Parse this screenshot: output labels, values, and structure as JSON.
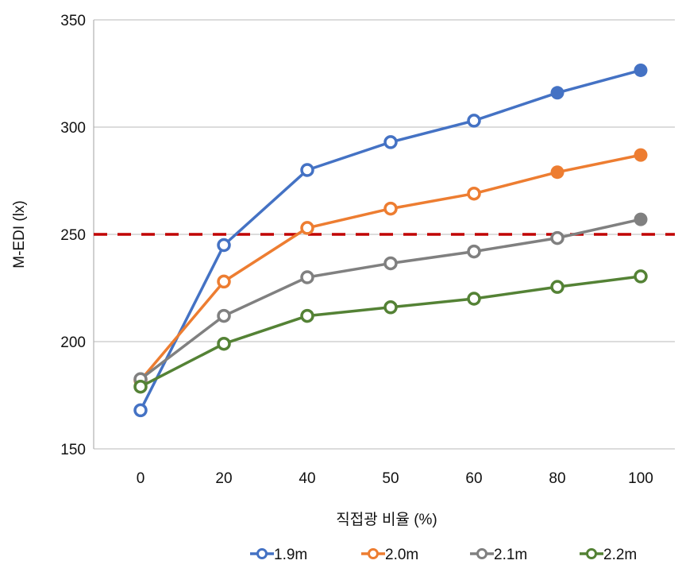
{
  "chart_data": {
    "type": "line",
    "title": "",
    "xlabel": "직접광 비율 (%)",
    "ylabel": "M-EDI (lx)",
    "categories": [
      "0",
      "20",
      "40",
      "50",
      "60",
      "80",
      "100"
    ],
    "ylim": [
      150,
      350
    ],
    "yticks": [
      "150",
      "200",
      "250",
      "300",
      "350"
    ],
    "grid": true,
    "legend_position": "bottom",
    "reference_line": {
      "value": 250,
      "color": "#C00000",
      "style": "dashed"
    },
    "series": [
      {
        "name": "1.9m",
        "color": "#4472C4",
        "values": [
          168,
          245,
          280,
          293,
          303,
          316,
          326.5
        ],
        "filled": [
          false,
          false,
          false,
          false,
          false,
          true,
          true
        ]
      },
      {
        "name": "2.0m",
        "color": "#ED7D31",
        "values": [
          182,
          228,
          253,
          262,
          269,
          279,
          287
        ],
        "filled": [
          false,
          false,
          false,
          false,
          false,
          true,
          true
        ]
      },
      {
        "name": "2.1m",
        "color": "#808080",
        "values": [
          182.5,
          212,
          230,
          236.5,
          242,
          248.3,
          257
        ],
        "filled": [
          false,
          false,
          false,
          false,
          false,
          false,
          true
        ]
      },
      {
        "name": "2.2m",
        "color": "#548235",
        "values": [
          179,
          199,
          212,
          216,
          220,
          225.5,
          230.4
        ],
        "filled": [
          false,
          false,
          false,
          false,
          false,
          false,
          false
        ]
      }
    ]
  }
}
